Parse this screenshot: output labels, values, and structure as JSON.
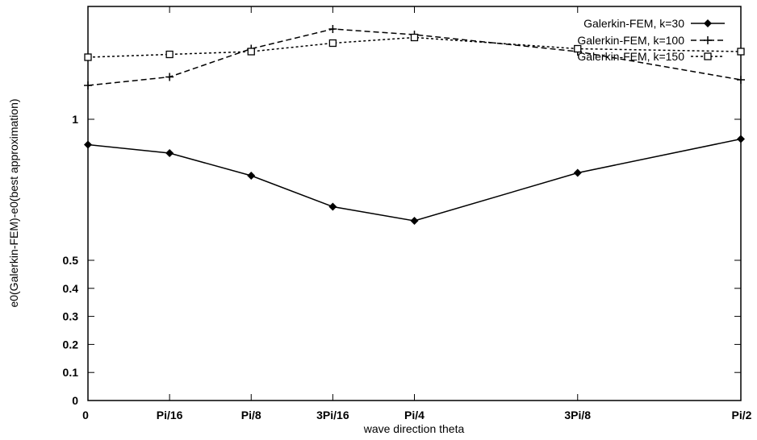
{
  "chart_data": {
    "type": "line",
    "title": "",
    "xlabel": "wave direction theta",
    "ylabel": "e0(Galerkin-FEM)-e0(best approximation)",
    "categories": [
      "0",
      "Pi/16",
      "Pi/8",
      "3Pi/16",
      "Pi/4",
      "3Pi/8",
      "Pi/2"
    ],
    "x": [
      0,
      0.19635,
      0.3927,
      0.58905,
      0.7854,
      1.1781,
      1.5708
    ],
    "x_range": [
      0,
      1.5708
    ],
    "x_tick_values": [
      0,
      0.19635,
      0.3927,
      0.58905,
      0.7854,
      1.1781,
      1.5708
    ],
    "y_ticks": [
      {
        "label": "0",
        "value": 0
      },
      {
        "label": "0.1",
        "value": 0.1
      },
      {
        "label": "0.2",
        "value": 0.2
      },
      {
        "label": "0.3",
        "value": 0.3
      },
      {
        "label": "0.4",
        "value": 0.4
      },
      {
        "label": "0.5",
        "value": 0.5
      },
      {
        "label": "1",
        "value": 1
      }
    ],
    "y_scale": "nonuniform (0 to 0.5 linear band, 0.5 to 1 extended)",
    "grid": false,
    "legend_position": "top-right",
    "series": [
      {
        "name": "Galerkin-FEM, k=30",
        "marker": "diamond",
        "line": "solid",
        "x": [
          0,
          0.19635,
          0.3927,
          0.58905,
          0.7854,
          1.1781,
          1.5708
        ],
        "values": [
          0.91,
          0.88,
          0.8,
          0.69,
          0.64,
          0.81,
          0.93
        ]
      },
      {
        "name": "Galerkin-FEM, k=100",
        "marker": "plus",
        "line": "dashed",
        "x": [
          0,
          0.19635,
          0.3927,
          0.58905,
          0.7854,
          1.1781,
          1.5708
        ],
        "values": [
          1.12,
          1.15,
          1.25,
          1.32,
          1.3,
          1.24,
          1.14
        ]
      },
      {
        "name": "Galerkin-FEM, k=150",
        "marker": "square",
        "line": "dotted",
        "x": [
          0,
          0.19635,
          0.3927,
          0.58905,
          0.7854,
          1.1781,
          1.5708
        ],
        "values": [
          1.22,
          1.23,
          1.24,
          1.27,
          1.29,
          1.25,
          1.24
        ]
      }
    ]
  }
}
